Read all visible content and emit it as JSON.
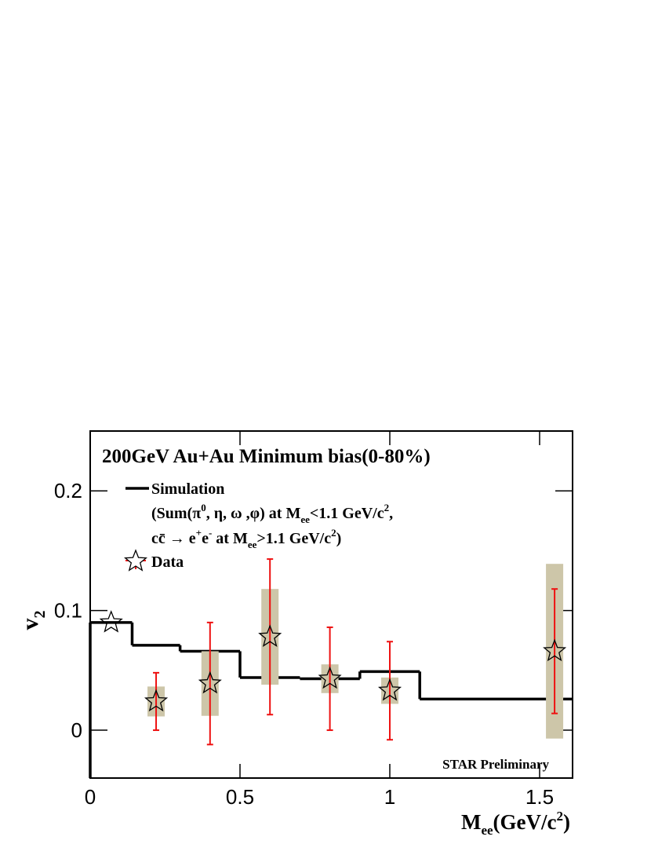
{
  "chart_data": {
    "type": "scatter",
    "title": "200GeV Au+Au Minimum bias(0-80%)",
    "x_label": [
      "M",
      "ee",
      "(GeV/c",
      "2",
      ")"
    ],
    "y_label": [
      "v",
      "2"
    ],
    "annotation": "STAR Preliminary",
    "xlim": [
      0,
      1.61
    ],
    "ylim": [
      -0.04,
      0.25
    ],
    "xticks": [
      0,
      0.5,
      1,
      1.5
    ],
    "yticks": [
      0,
      0.1,
      0.2
    ],
    "legend_note": [
      [
        "(Sum(π",
        "0",
        ", η, ω ,φ) at M",
        "ee",
        "<1.1 GeV/c",
        "2",
        ","
      ],
      [
        "cc̄ → e",
        "+",
        "e",
        "-",
        " at M",
        "ee",
        ">1.1 GeV/c",
        "2",
        ")"
      ]
    ],
    "simulation": {
      "name": "Simulation",
      "color": "#000000",
      "bins": [
        0,
        0.14,
        0.3,
        0.5,
        0.7,
        0.9,
        1.1,
        1.61
      ],
      "values": [
        0.09,
        0.071,
        0.066,
        0.044,
        0.043,
        0.049,
        0.026
      ]
    },
    "data": {
      "name": "Data",
      "color": "#ee1111",
      "sys_color": "#cdc6a9",
      "x": [
        0.07,
        0.22,
        0.4,
        0.6,
        0.8,
        1.0,
        1.55
      ],
      "values": [
        0.09,
        0.024,
        0.039,
        0.078,
        0.043,
        0.033,
        0.066
      ],
      "errors": [
        null,
        0.024,
        0.051,
        0.065,
        0.043,
        0.041,
        0.052
      ],
      "sys_errors": [
        null,
        0.0125,
        0.027,
        0.04,
        0.012,
        0.011,
        0.073
      ]
    }
  }
}
